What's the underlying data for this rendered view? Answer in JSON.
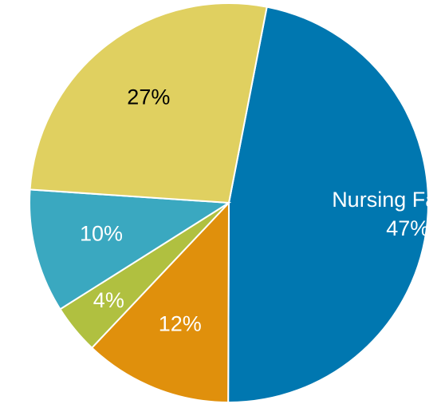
{
  "chart_data": {
    "type": "pie",
    "categories": [
      "Nursing Facility,",
      null,
      null,
      null,
      null
    ],
    "values": [
      47,
      12,
      4,
      10,
      27
    ],
    "value_labels": [
      "47%",
      "12%",
      "4%",
      "10%",
      "27%"
    ],
    "colors": [
      "#0077b0",
      "#e0900c",
      "#b0c040",
      "#3aa8c0",
      "#e0d060"
    ],
    "label_colors": [
      "#ffffff",
      "#ffffff",
      "#ffffff",
      "#ffffff",
      "#000000"
    ]
  }
}
